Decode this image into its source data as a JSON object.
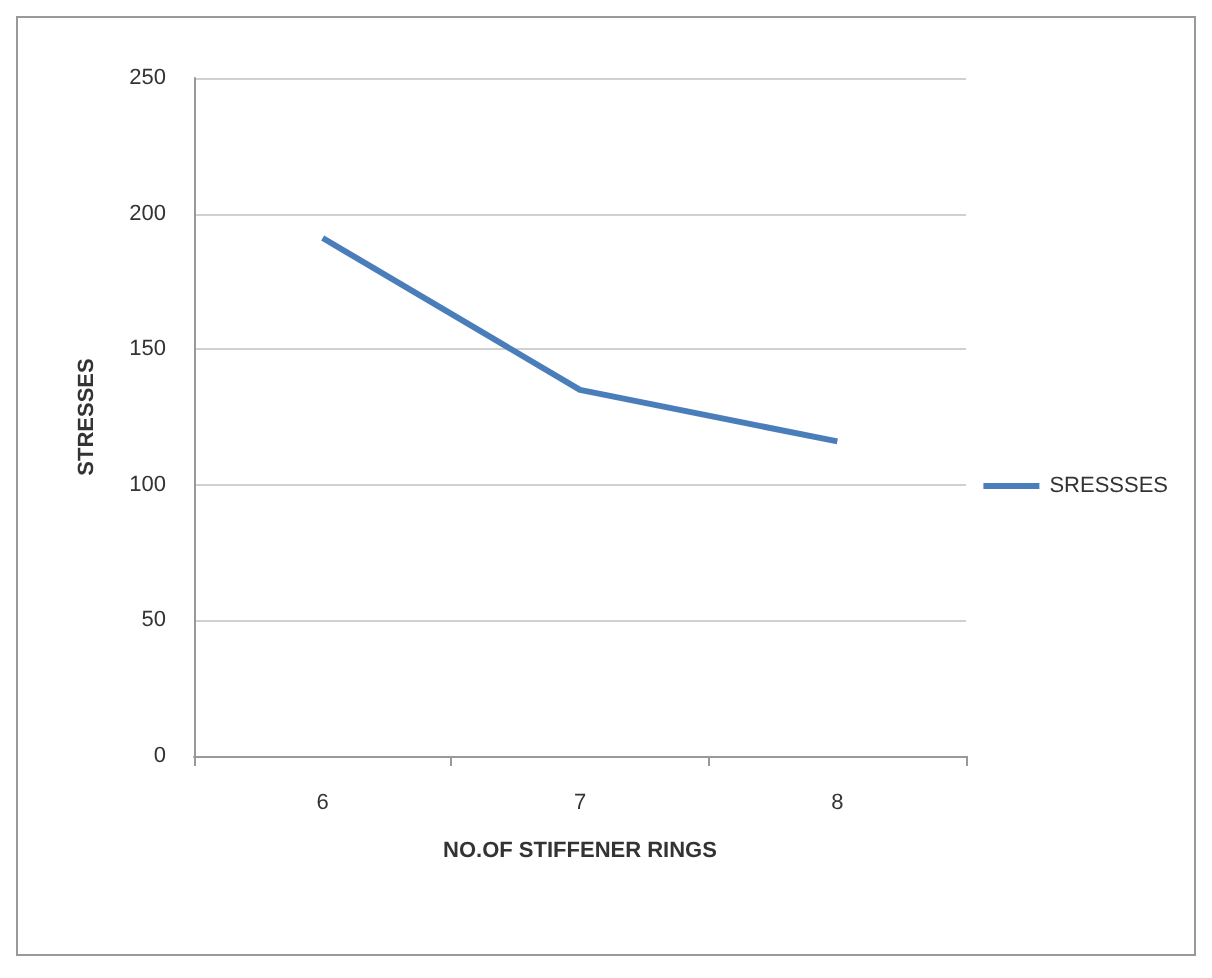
{
  "chart_data": {
    "type": "line",
    "xlabel": "NO.OF STIFFENER RINGS",
    "ylabel": "STRESSES",
    "categories": [
      "6",
      "7",
      "8"
    ],
    "series": [
      {
        "name": "SRESSSES",
        "color": "#4a7ebb",
        "values": [
          191,
          135,
          116
        ]
      }
    ],
    "ylim": [
      0,
      250
    ],
    "yticks": [
      0,
      50,
      100,
      150,
      200,
      250
    ],
    "grid": "y",
    "legend": "right",
    "marker": "none",
    "line_style": "solid"
  }
}
